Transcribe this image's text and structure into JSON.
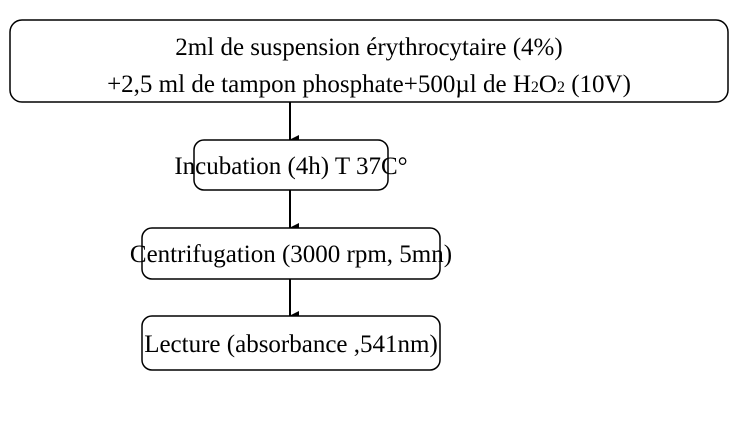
{
  "nodes": [
    {
      "lines": [
        "2ml de suspension érythrocytaire (4%)",
        [
          "+2,5 ml de tampon phosphate+500µl de H",
          "2",
          "O",
          "2",
          " (10V)"
        ]
      ]
    },
    {
      "label": "Incubation (4h) T 37C°"
    },
    {
      "label": "Centrifugation (3000 rpm, 5mn)"
    },
    {
      "label": "Lecture (absorbance ,541nm)"
    }
  ]
}
